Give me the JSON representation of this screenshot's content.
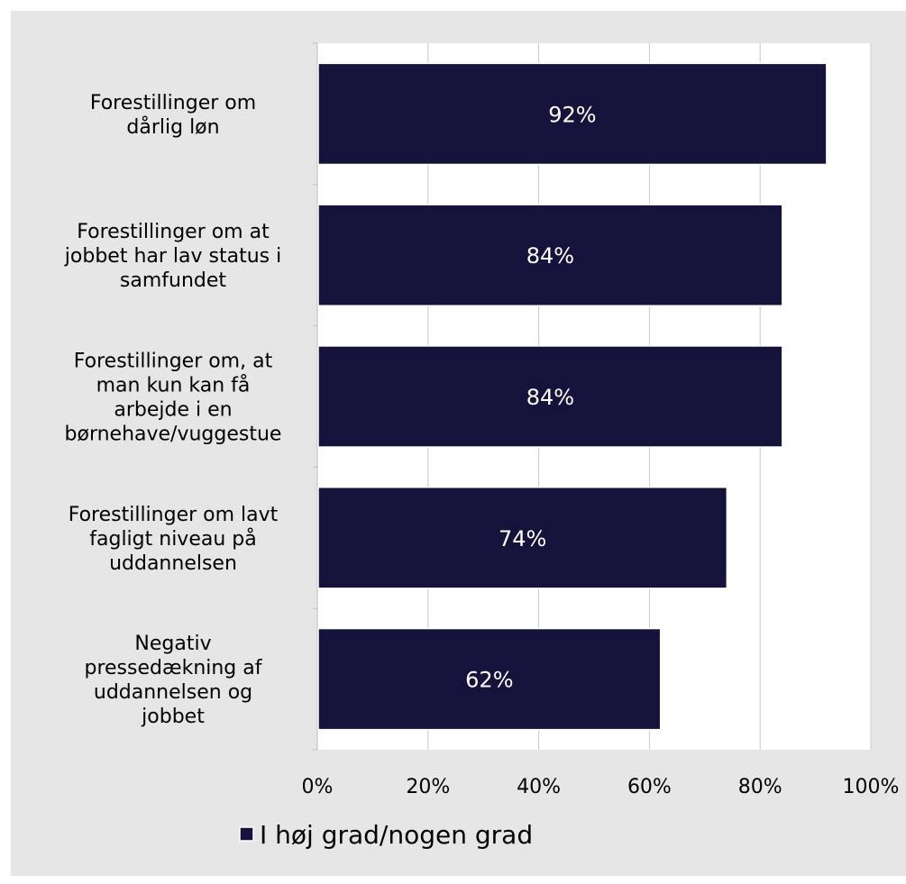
{
  "chart_data": {
    "type": "bar",
    "orientation": "horizontal",
    "categories": [
      [
        "Forestillinger om",
        "dårlig løn"
      ],
      [
        "Forestillinger om at",
        "jobbet har lav status i",
        "samfundet"
      ],
      [
        "Forestillinger om, at",
        "man kun kan få",
        "arbejde i en",
        "børnehave/vuggestue"
      ],
      [
        "Forestillinger om lavt",
        "fagligt niveau på",
        "uddannelsen"
      ],
      [
        "Negativ",
        "pressedækning af",
        "uddannelsen og",
        "jobbet"
      ]
    ],
    "series": [
      {
        "name": "I høj grad/nogen grad",
        "values": [
          92,
          84,
          84,
          74,
          62
        ],
        "data_labels": [
          "92%",
          "84%",
          "84%",
          "74%",
          "62%"
        ],
        "color": "#15123b"
      }
    ],
    "xlim": [
      0,
      100
    ],
    "xticks": [
      0,
      20,
      40,
      60,
      80,
      100
    ],
    "xtick_labels": [
      "0%",
      "20%",
      "40%",
      "60%",
      "80%",
      "100%"
    ],
    "grid": "vertical",
    "legend_position": "bottom",
    "colors": {
      "background": "#e6e6e6",
      "plot_background": "#ffffff",
      "gridline": "#c8c8c8",
      "bar": "#15123b",
      "bar_label": "#ffffff"
    }
  }
}
